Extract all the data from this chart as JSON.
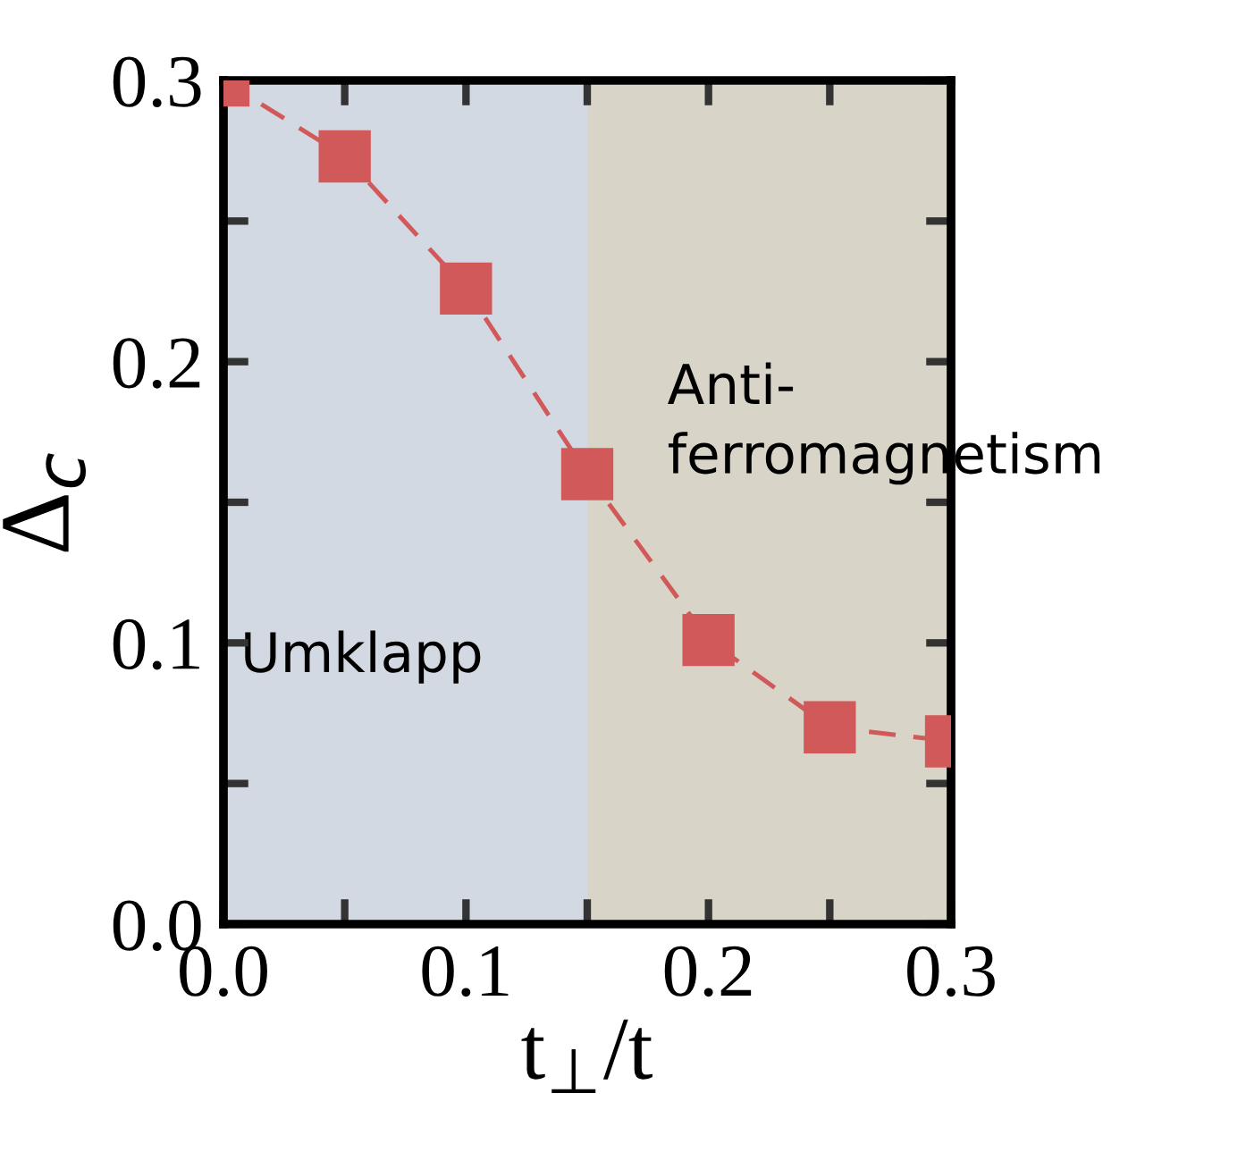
{
  "chart_data": {
    "type": "line",
    "xlabel": "t$_{⊥}$/t",
    "ylabel": "Δ$_{c}$",
    "x": [
      0.0,
      0.05,
      0.1,
      0.15,
      0.2,
      0.25,
      0.3
    ],
    "series": [
      {
        "color": "#d2595a",
        "values": [
          0.3,
          0.273,
          0.226,
          0.16,
          0.101,
          0.07,
          0.065
        ]
      }
    ],
    "marker": "square",
    "line_style": "dashed",
    "grid": false,
    "legend": false,
    "xlim": [
      0,
      0.3
    ],
    "ylim": [
      0,
      0.3
    ],
    "xticks": [
      {
        "value": 0.0,
        "label": "0.0"
      },
      {
        "value": 0.05,
        "label": null
      },
      0.1,
      {
        "value": 0.15,
        "label": null
      },
      0.2,
      {
        "value": 0.25,
        "label": null
      },
      0.3
    ],
    "yticks": [
      {
        "value": 0.0,
        "label": "0.0"
      },
      {
        "value": 0.05,
        "label": null
      },
      0.1,
      {
        "value": 0.15,
        "label": null
      },
      0.2,
      {
        "value": 0.25,
        "label": null
      },
      0.3
    ],
    "bands": [
      {
        "axis": "x",
        "from": 0,
        "to": 0.15,
        "label": "Umklapp",
        "color": "#d3d9e2"
      },
      {
        "axis": "x",
        "from": 0.15,
        "to": 0.3,
        "label": "Anti-\nferromagnetism",
        "color": "#d8d5c8"
      }
    ]
  }
}
